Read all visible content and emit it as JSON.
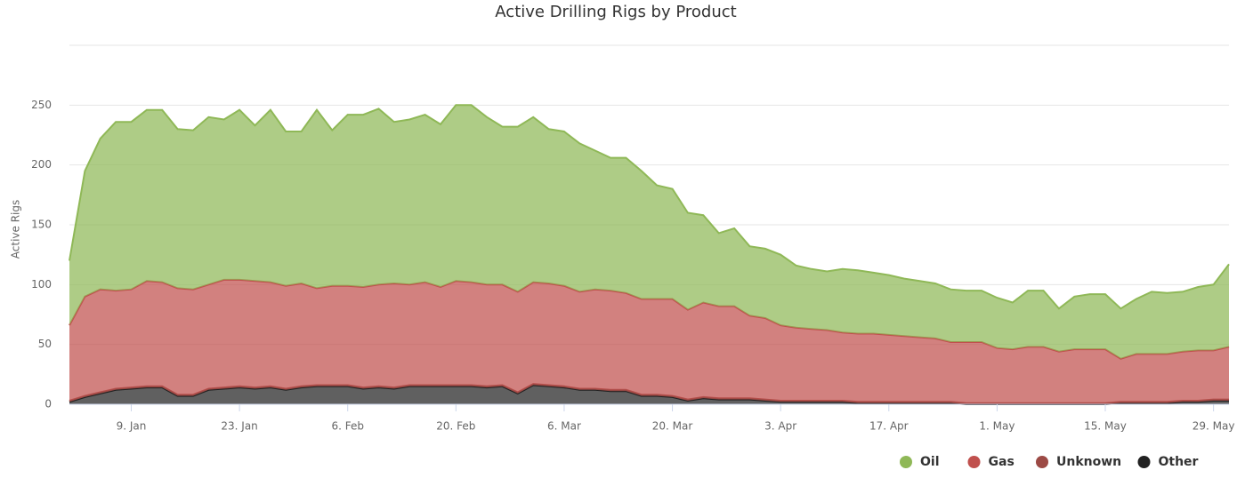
{
  "chart_data": {
    "type": "stacked_area",
    "title": "Active Drilling Rigs by Product",
    "y_label": "Active Rigs",
    "categories": [
      null,
      null,
      null,
      null,
      "9. Jan",
      null,
      null,
      null,
      null,
      null,
      null,
      "23. Jan",
      null,
      null,
      null,
      null,
      null,
      null,
      "6. Feb",
      null,
      null,
      null,
      null,
      null,
      null,
      "20. Feb",
      null,
      null,
      null,
      null,
      null,
      null,
      "6. Mar",
      null,
      null,
      null,
      null,
      null,
      null,
      "20. Mar",
      null,
      null,
      null,
      null,
      null,
      null,
      "3. Apr",
      null,
      null,
      null,
      null,
      null,
      null,
      "17. Apr",
      null,
      null,
      null,
      null,
      null,
      null,
      "1. May",
      null,
      null,
      null,
      null,
      null,
      null,
      "15. May",
      null,
      null,
      null,
      null,
      null,
      null,
      "29. May",
      null
    ],
    "series": [
      {
        "name": "Oil",
        "color": "#8fb857",
        "values": [
          54,
          105,
          126,
          141,
          140,
          143,
          144,
          133,
          133,
          140,
          134,
          142,
          130,
          144,
          129,
          127,
          149,
          130,
          143,
          144,
          147,
          135,
          138,
          140,
          136,
          147,
          148,
          140,
          132,
          138,
          138,
          129,
          129,
          124,
          116,
          111,
          113,
          107,
          95,
          92,
          81,
          73,
          61,
          65,
          58,
          58,
          59,
          52,
          50,
          49,
          53,
          53,
          51,
          50,
          48,
          47,
          46,
          44,
          43,
          43,
          42,
          39,
          47,
          47,
          36,
          44,
          46,
          46,
          42,
          46,
          52,
          51,
          50,
          53,
          55,
          69
        ]
      },
      {
        "name": "Gas",
        "color": "#c0504d",
        "values": [
          63,
          83,
          86,
          82,
          82,
          88,
          87,
          89,
          88,
          87,
          90,
          89,
          89,
          87,
          86,
          86,
          81,
          83,
          83,
          84,
          85,
          87,
          84,
          86,
          82,
          87,
          86,
          85,
          84,
          84,
          85,
          85,
          84,
          81,
          83,
          83,
          81,
          80,
          80,
          81,
          75,
          79,
          77,
          77,
          69,
          68,
          63,
          61,
          60,
          59,
          57,
          57,
          57,
          56,
          55,
          54,
          53,
          50,
          51,
          51,
          46,
          45,
          47,
          47,
          43,
          45,
          45,
          45,
          36,
          40,
          40,
          40,
          41,
          42,
          41,
          44
        ]
      },
      {
        "name": "Unknown",
        "color": "#9c4a45",
        "values": [
          1,
          1,
          1,
          1,
          1,
          1,
          1,
          1,
          1,
          1,
          1,
          1,
          1,
          1,
          1,
          1,
          1,
          1,
          1,
          1,
          1,
          1,
          1,
          1,
          1,
          1,
          1,
          1,
          1,
          1,
          1,
          1,
          1,
          1,
          1,
          1,
          1,
          1,
          1,
          1,
          1,
          1,
          1,
          1,
          1,
          1,
          1,
          1,
          1,
          1,
          1,
          1,
          1,
          1,
          1,
          1,
          1,
          1,
          1,
          1,
          1,
          1,
          1,
          1,
          1,
          1,
          1,
          1,
          1,
          1,
          1,
          1,
          1,
          1,
          1,
          1
        ]
      },
      {
        "name": "Other",
        "color": "#222222",
        "values": [
          2,
          6,
          9,
          12,
          13,
          14,
          14,
          7,
          7,
          12,
          13,
          14,
          13,
          14,
          12,
          14,
          15,
          15,
          15,
          13,
          14,
          13,
          15,
          15,
          15,
          15,
          15,
          14,
          15,
          9,
          16,
          15,
          14,
          12,
          12,
          11,
          11,
          7,
          7,
          6,
          3,
          5,
          4,
          4,
          4,
          3,
          2,
          2,
          2,
          2,
          2,
          1,
          1,
          1,
          1,
          1,
          1,
          1,
          0,
          0,
          0,
          0,
          0,
          0,
          0,
          0,
          0,
          0,
          1,
          1,
          1,
          1,
          2,
          2,
          3,
          3
        ]
      }
    ],
    "ylim": [
      0,
      300
    ],
    "yticks": [
      0,
      50,
      100,
      150,
      200,
      250
    ],
    "grid": true,
    "legend": "bottom-right"
  }
}
